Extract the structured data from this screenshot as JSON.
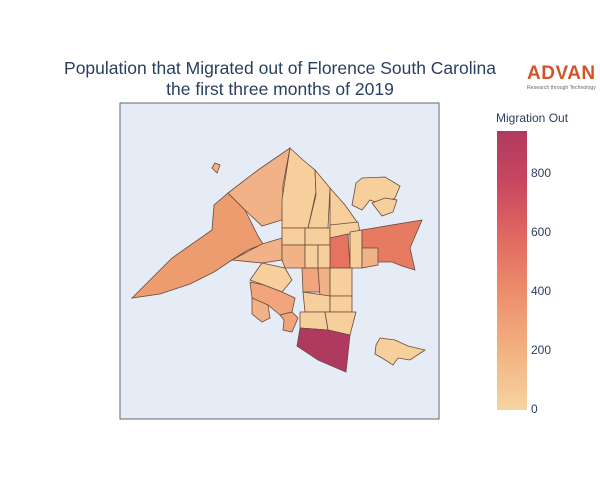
{
  "title": {
    "line1": "Population that Migrated out of Florence South Carolina",
    "line2": "the first three months of 2019"
  },
  "logo": {
    "brand": "ADVAN",
    "tagline": "Research through Technology",
    "color": "#d2542b"
  },
  "colorbar": {
    "title": "Migration Out",
    "ticks": [
      "800",
      "600",
      "400",
      "200",
      "0"
    ],
    "range": [
      0,
      950
    ],
    "colorscale": [
      "#f5d4a0",
      "#f3b07f",
      "#ec8a6a",
      "#de6560",
      "#c8475f",
      "#b03a5f"
    ]
  },
  "map": {
    "background": "#e5ecf6",
    "border_color": "#666666"
  }
}
